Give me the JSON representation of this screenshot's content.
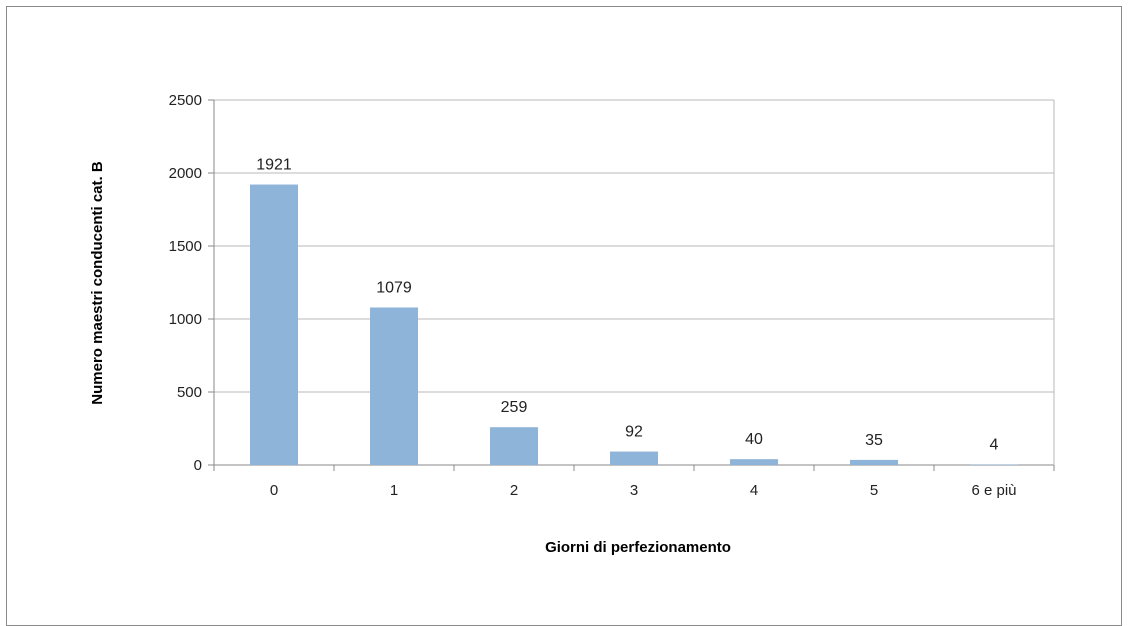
{
  "chart_data": {
    "type": "bar",
    "categories": [
      "0",
      "1",
      "2",
      "3",
      "4",
      "5",
      "6 e più"
    ],
    "series": [
      {
        "values": [
          1921,
          1079,
          259,
          92,
          40,
          35,
          4
        ],
        "color": "#8fb4d9"
      }
    ],
    "xlabel": "Giorni di perfezionamento",
    "ylabel": "Numero maestri conducenti cat. B",
    "ylim": [
      0,
      2500
    ],
    "yticks": [
      0,
      500,
      1000,
      1500,
      2000,
      2500
    ],
    "grid": true,
    "legend": "none"
  }
}
